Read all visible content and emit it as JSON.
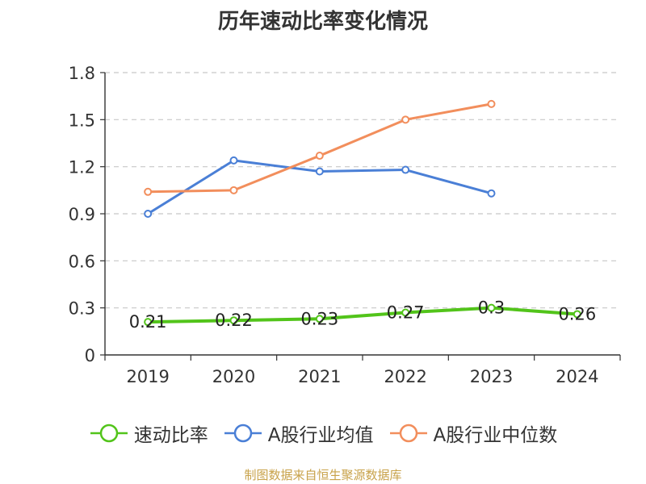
{
  "chart_data": {
    "type": "line",
    "title": "历年速动比率变化情况",
    "categories": [
      "2019",
      "2020",
      "2021",
      "2022",
      "2023",
      "2024"
    ],
    "ylim": [
      0,
      1.8
    ],
    "yticks": [
      "0",
      "0.3",
      "0.6",
      "0.9",
      "1.2",
      "1.5",
      "1.8"
    ],
    "grid": true,
    "legend_position": "bottom",
    "series": [
      {
        "name": "速动比率",
        "color": "#52c41a",
        "values": [
          0.21,
          0.22,
          0.23,
          0.27,
          0.3,
          0.26
        ],
        "labels": [
          "0.21",
          "0.22",
          "0.23",
          "0.27",
          "0.3",
          "0.26"
        ]
      },
      {
        "name": "A股行业均值",
        "color": "#4a7fd6",
        "values": [
          0.9,
          1.24,
          1.17,
          1.18,
          1.03,
          null
        ]
      },
      {
        "name": "A股行业中位数",
        "color": "#f28e5c",
        "values": [
          1.04,
          1.05,
          1.27,
          1.5,
          1.6,
          null
        ]
      }
    ]
  },
  "source": "制图数据来自恒生聚源数据库"
}
